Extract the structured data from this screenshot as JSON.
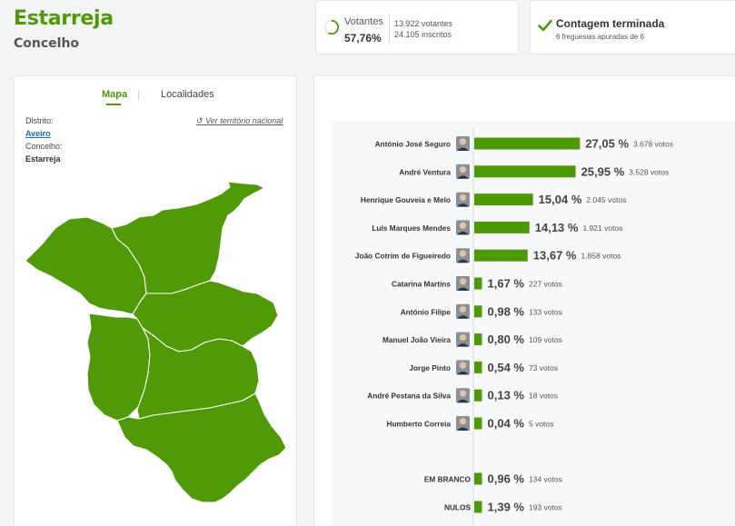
{
  "header": {
    "title": "Estarreja",
    "subtitle": "Concelho"
  },
  "votantes": {
    "label": "Votantes",
    "pct": "57,76%",
    "progress": 0.5776,
    "line1": "13.922 votantes",
    "line2": "24.105 inscritos"
  },
  "contagem": {
    "label": "Contagem terminada",
    "sub": "6 freguesias apuradas de 6"
  },
  "tabs": {
    "mapa": "Mapa",
    "localidades": "Localidades"
  },
  "location": {
    "distrito_label": "Distrito:",
    "distrito": "Aveiro",
    "concelho_label": "Concelho:",
    "concelho": "Estarreja",
    "nacional_link": "Ver território nacional"
  },
  "colors": {
    "accent": "#4e9a06",
    "map_fill": "#4f9a06",
    "bar": "#4e9a06"
  },
  "chart_data": {
    "type": "bar",
    "orientation": "horizontal",
    "candidates": [
      {
        "name": "António José Seguro",
        "pct": 27.05,
        "pct_label": "27,05 %",
        "votes": "3.678 votos"
      },
      {
        "name": "André Ventura",
        "pct": 25.95,
        "pct_label": "25,95 %",
        "votes": "3.528 votos"
      },
      {
        "name": "Henrique Gouveia e Melo",
        "pct": 15.04,
        "pct_label": "15,04 %",
        "votes": "2.045 votos"
      },
      {
        "name": "Luís Marques Mendes",
        "pct": 14.13,
        "pct_label": "14,13 %",
        "votes": "1.921 votos"
      },
      {
        "name": "João Cotrim de Figueiredo",
        "pct": 13.67,
        "pct_label": "13,67 %",
        "votes": "1.858 votos"
      },
      {
        "name": "Catarina Martins",
        "pct": 1.67,
        "pct_label": "1,67 %",
        "votes": "227 votos"
      },
      {
        "name": "António Filipe",
        "pct": 0.98,
        "pct_label": "0,98 %",
        "votes": "133 votos"
      },
      {
        "name": "Manuel João Vieira",
        "pct": 0.8,
        "pct_label": "0,80 %",
        "votes": "109 votos"
      },
      {
        "name": "Jorge Pinto",
        "pct": 0.54,
        "pct_label": "0,54 %",
        "votes": "73 votos"
      },
      {
        "name": "André Pestana da Silva",
        "pct": 0.13,
        "pct_label": "0,13 %",
        "votes": "18 votos"
      },
      {
        "name": "Humberto Correia",
        "pct": 0.04,
        "pct_label": "0,04 %",
        "votes": "5 votos"
      }
    ],
    "extras": [
      {
        "name": "EM BRANCO",
        "pct": 0.96,
        "pct_label": "0,96 %",
        "votes": "134 votos"
      },
      {
        "name": "NULOS",
        "pct": 1.39,
        "pct_label": "1,39 %",
        "votes": "193 votos"
      }
    ]
  }
}
